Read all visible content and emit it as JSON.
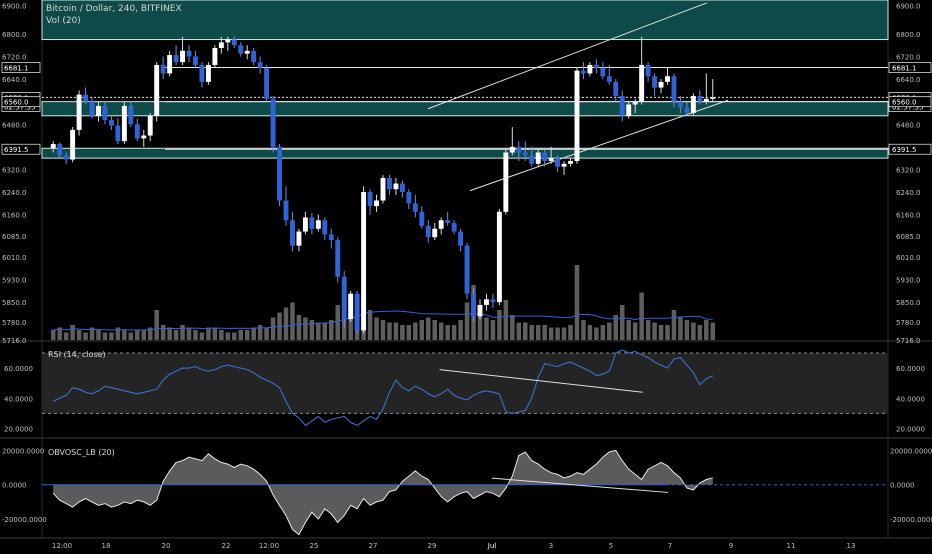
{
  "header": {
    "symbol_line": "Bitcoin / Dollar, 240, BITFINEX",
    "volume_label": "Vol (20)"
  },
  "colors": {
    "up": "#ffffff",
    "down": "#2f63d6",
    "zone_fill": "#0e4a47",
    "zone_border": "#cfe9e6",
    "rsi_line": "#3f6fd0",
    "rsi_band": "#242424",
    "obv_fill": "#7a7a7a",
    "axis_text": "#bdbdbd",
    "trendline": "#e0e0e0"
  },
  "chart_data": [
    {
      "type": "candlestick",
      "title": "Bitcoin / Dollar, 240, BITFINEX",
      "ylim": [
        5716,
        6920
      ],
      "yticks": [
        "6900.0",
        "6800.0",
        "6720.0",
        "6640.0",
        "6560.0",
        "6480.0",
        "6400.0",
        "6320.0",
        "6240.0",
        "6160.0",
        "6085.0",
        "6010.0",
        "5930.0",
        "5850.0",
        "5780.0",
        "5716.0"
      ],
      "price_labels": [
        "6681.1",
        "6575.0",
        "02:57:35",
        "6560.0",
        "6391.5"
      ],
      "resistance_zones": [
        [
          6780,
          6920
        ],
        [
          6510,
          6560
        ],
        [
          6360,
          6395
        ]
      ],
      "horizontal_levels": [
        6681.1,
        6575.0,
        6560.0,
        6391.5
      ],
      "channel_lines": [
        {
          "from": [
            0,
            6535
          ],
          "to": [
            0.93,
            6910
          ]
        },
        {
          "from": [
            0.14,
            6245
          ],
          "to": [
            1.0,
            6565
          ]
        }
      ],
      "x_axis_labels": [
        "12:00",
        "18",
        "20",
        "22",
        "12:00",
        "25",
        "27",
        "29",
        "Jul",
        "3",
        "5",
        "7",
        "9",
        "11",
        "13"
      ],
      "candles": [
        [
          6395,
          6420,
          6380,
          6410
        ],
        [
          6410,
          6415,
          6360,
          6370
        ],
        [
          6370,
          6380,
          6340,
          6355
        ],
        [
          6355,
          6470,
          6345,
          6460
        ],
        [
          6460,
          6600,
          6440,
          6585
        ],
        [
          6585,
          6610,
          6550,
          6560
        ],
        [
          6560,
          6575,
          6500,
          6510
        ],
        [
          6510,
          6560,
          6490,
          6545
        ],
        [
          6545,
          6560,
          6480,
          6495
        ],
        [
          6495,
          6510,
          6460,
          6475
        ],
        [
          6475,
          6500,
          6410,
          6420
        ],
        [
          6420,
          6560,
          6410,
          6545
        ],
        [
          6545,
          6560,
          6470,
          6480
        ],
        [
          6480,
          6500,
          6420,
          6430
        ],
        [
          6430,
          6460,
          6400,
          6440
        ],
        [
          6440,
          6520,
          6420,
          6510
        ],
        [
          6510,
          6700,
          6490,
          6690
        ],
        [
          6690,
          6720,
          6640,
          6660
        ],
        [
          6660,
          6740,
          6650,
          6725
        ],
        [
          6725,
          6760,
          6690,
          6700
        ],
        [
          6700,
          6790,
          6690,
          6740
        ],
        [
          6740,
          6760,
          6700,
          6720
        ],
        [
          6720,
          6740,
          6680,
          6690
        ],
        [
          6690,
          6700,
          6610,
          6630
        ],
        [
          6630,
          6700,
          6620,
          6690
        ],
        [
          6690,
          6760,
          6680,
          6750
        ],
        [
          6750,
          6790,
          6730,
          6770
        ],
        [
          6770,
          6790,
          6740,
          6780
        ],
        [
          6780,
          6790,
          6750,
          6760
        ],
        [
          6760,
          6770,
          6720,
          6730
        ],
        [
          6730,
          6760,
          6710,
          6740
        ],
        [
          6740,
          6750,
          6690,
          6700
        ],
        [
          6700,
          6720,
          6660,
          6680
        ],
        [
          6680,
          6690,
          6560,
          6570
        ],
        [
          6570,
          6580,
          6380,
          6400
        ],
        [
          6400,
          6410,
          6190,
          6210
        ],
        [
          6210,
          6260,
          6120,
          6140
        ],
        [
          6140,
          6170,
          6030,
          6050
        ],
        [
          6050,
          6110,
          6030,
          6100
        ],
        [
          6100,
          6170,
          6090,
          6150
        ],
        [
          6150,
          6165,
          6090,
          6110
        ],
        [
          6110,
          6160,
          6100,
          6140
        ],
        [
          6140,
          6150,
          6070,
          6090
        ],
        [
          6090,
          6110,
          6040,
          6070
        ],
        [
          6070,
          6080,
          5920,
          5940
        ],
        [
          5940,
          5960,
          5760,
          5790
        ],
        [
          5790,
          5890,
          5780,
          5880
        ],
        [
          5880,
          5890,
          5740,
          5750
        ],
        [
          5750,
          6260,
          5740,
          6240
        ],
        [
          6240,
          6250,
          6160,
          6190
        ],
        [
          6190,
          6230,
          6170,
          6210
        ],
        [
          6210,
          6300,
          6200,
          6290
        ],
        [
          6290,
          6300,
          6230,
          6250
        ],
        [
          6250,
          6290,
          6230,
          6270
        ],
        [
          6270,
          6280,
          6220,
          6240
        ],
        [
          6240,
          6250,
          6180,
          6200
        ],
        [
          6200,
          6230,
          6150,
          6170
        ],
        [
          6170,
          6190,
          6110,
          6120
        ],
        [
          6120,
          6140,
          6060,
          6080
        ],
        [
          6080,
          6130,
          6070,
          6110
        ],
        [
          6110,
          6150,
          6090,
          6140
        ],
        [
          6140,
          6170,
          6120,
          6130
        ],
        [
          6130,
          6140,
          6090,
          6100
        ],
        [
          6100,
          6110,
          6030,
          6050
        ],
        [
          6050,
          6060,
          5860,
          5880
        ],
        [
          5880,
          5900,
          5780,
          5800
        ],
        [
          5800,
          5860,
          5790,
          5840
        ],
        [
          5840,
          5880,
          5820,
          5860
        ],
        [
          5860,
          5880,
          5830,
          5850
        ],
        [
          5850,
          6180,
          5840,
          6170
        ],
        [
          6170,
          6390,
          6160,
          6380
        ],
        [
          6380,
          6470,
          6370,
          6400
        ],
        [
          6400,
          6420,
          6350,
          6380
        ],
        [
          6380,
          6420,
          6350,
          6370
        ],
        [
          6370,
          6400,
          6330,
          6340
        ],
        [
          6340,
          6390,
          6330,
          6380
        ],
        [
          6380,
          6390,
          6330,
          6350
        ],
        [
          6350,
          6400,
          6340,
          6360
        ],
        [
          6360,
          6370,
          6310,
          6330
        ],
        [
          6330,
          6350,
          6300,
          6340
        ],
        [
          6340,
          6360,
          6330,
          6350
        ],
        [
          6350,
          6680,
          6340,
          6670
        ],
        [
          6670,
          6700,
          6640,
          6660
        ],
        [
          6660,
          6700,
          6650,
          6690
        ],
        [
          6690,
          6710,
          6660,
          6680
        ],
        [
          6680,
          6700,
          6640,
          6650
        ],
        [
          6650,
          6690,
          6620,
          6630
        ],
        [
          6630,
          6640,
          6560,
          6580
        ],
        [
          6580,
          6600,
          6490,
          6510
        ],
        [
          6510,
          6560,
          6500,
          6550
        ],
        [
          6550,
          6570,
          6520,
          6560
        ],
        [
          6560,
          6790,
          6550,
          6690
        ],
        [
          6690,
          6700,
          6630,
          6650
        ],
        [
          6650,
          6660,
          6580,
          6610
        ],
        [
          6610,
          6640,
          6590,
          6630
        ],
        [
          6630,
          6680,
          6620,
          6650
        ],
        [
          6650,
          6660,
          6540,
          6560
        ],
        [
          6560,
          6580,
          6520,
          6540
        ],
        [
          6540,
          6560,
          6510,
          6520
        ],
        [
          6520,
          6590,
          6510,
          6580
        ],
        [
          6580,
          6600,
          6550,
          6560
        ],
        [
          6560,
          6660,
          6550,
          6570
        ],
        [
          6570,
          6640,
          6560,
          6575
        ]
      ],
      "volume": [
        4,
        5,
        3,
        6,
        4,
        3,
        5,
        4,
        3,
        3,
        5,
        4,
        3,
        4,
        4,
        5,
        12,
        6,
        5,
        4,
        6,
        5,
        4,
        3,
        5,
        5,
        4,
        3,
        3,
        4,
        4,
        5,
        6,
        5,
        9,
        11,
        13,
        15,
        10,
        9,
        8,
        7,
        7,
        8,
        14,
        20,
        13,
        18,
        27,
        12,
        9,
        8,
        7,
        7,
        6,
        6,
        7,
        8,
        9,
        8,
        7,
        6,
        6,
        8,
        15,
        22,
        14,
        9,
        8,
        12,
        16,
        10,
        7,
        7,
        6,
        6,
        6,
        5,
        5,
        5,
        6,
        30,
        8,
        6,
        5,
        6,
        7,
        10,
        14,
        8,
        7,
        19,
        8,
        7,
        6,
        6,
        12,
        9,
        8,
        7,
        6,
        8,
        7
      ],
      "volume_ma_label": "Vol (20)"
    },
    {
      "type": "line",
      "title": "RSI (14, close)",
      "ylim": [
        15,
        76
      ],
      "yticks": [
        "60.0000",
        "40.0000",
        "20.0000"
      ],
      "bands": [
        30,
        70
      ],
      "values": [
        38,
        40,
        42,
        47,
        46,
        44,
        43,
        45,
        48,
        47,
        46,
        45,
        44,
        43,
        44,
        45,
        46,
        52,
        56,
        58,
        60,
        60,
        61,
        59,
        58,
        59,
        61,
        62,
        61,
        60,
        59,
        57,
        54,
        52,
        50,
        47,
        38,
        30,
        27,
        22,
        25,
        28,
        24,
        26,
        27,
        28,
        24,
        22,
        25,
        28,
        26,
        33,
        44,
        52,
        47,
        45,
        48,
        46,
        43,
        41,
        43,
        46,
        42,
        40,
        39,
        42,
        44,
        45,
        44,
        43,
        31,
        30,
        31,
        32,
        40,
        54,
        63,
        62,
        61,
        63,
        64,
        62,
        60,
        58,
        55,
        56,
        58,
        70,
        72,
        70,
        71,
        69,
        67,
        64,
        62,
        60,
        66,
        67,
        62,
        57,
        49,
        53,
        55
      ],
      "divergence_line": {
        "from": [
          0.47,
          59.0
        ],
        "to": [
          0.71,
          44.0
        ]
      }
    },
    {
      "type": "area",
      "title": "OBVOSC_LB (20)",
      "ylim": [
        -31000,
        26000
      ],
      "yticks": [
        "20000.0000",
        "0.0000",
        "-20000.0000"
      ],
      "zero_label": "0.0000",
      "values": [
        -5000,
        -9000,
        -11000,
        -13000,
        -10000,
        -8000,
        -10000,
        -12000,
        -11000,
        -13000,
        -12000,
        -10000,
        -11000,
        -9000,
        -10000,
        -12000,
        -9000,
        2000,
        8000,
        13000,
        14000,
        16000,
        15000,
        14000,
        18000,
        15000,
        13000,
        12000,
        10000,
        12000,
        11000,
        9000,
        6000,
        2000,
        -6000,
        -12000,
        -18000,
        -26000,
        -29000,
        -22000,
        -16000,
        -20000,
        -14000,
        -17000,
        -22000,
        -18000,
        -12000,
        -14000,
        -8000,
        -12000,
        -10000,
        -9000,
        -4000,
        -3000,
        2000,
        5000,
        8000,
        5000,
        3000,
        -2000,
        -7000,
        -10000,
        -7000,
        -5000,
        -4000,
        -8000,
        -6000,
        -4000,
        -5000,
        -7000,
        -2000,
        5000,
        17000,
        19000,
        14000,
        12000,
        9000,
        7000,
        6000,
        4000,
        5000,
        7000,
        6000,
        9000,
        12000,
        16000,
        19000,
        20000,
        14000,
        9000,
        6000,
        3000,
        9000,
        11000,
        13000,
        11000,
        7000,
        4000,
        -2000,
        -3000,
        1000,
        3000,
        4000
      ],
      "divergence_line": {
        "from": [
          0.53,
          3800
        ],
        "to": [
          0.97,
          -4500
        ]
      }
    }
  ]
}
